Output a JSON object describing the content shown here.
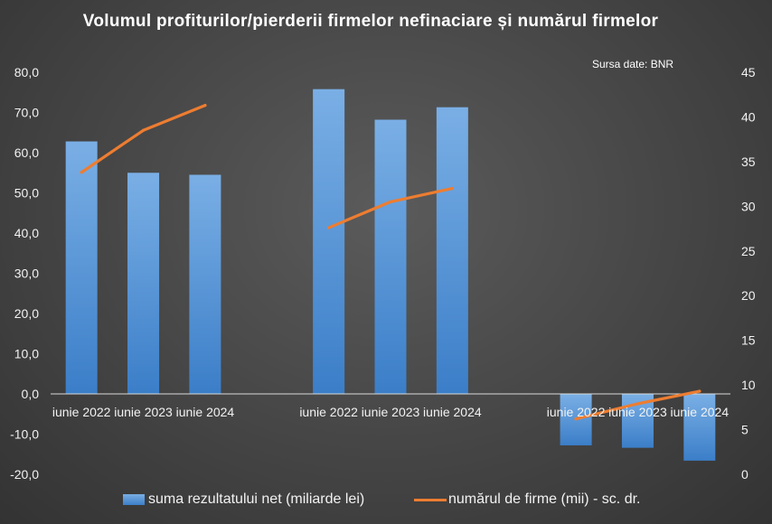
{
  "chart_data": {
    "type": "bar",
    "title": "Volumul profiturilor/pierderii firmelor nefinaciare și numărul firmelor",
    "source_note": "Sursa date: BNR",
    "categories": [
      "iunie 2022",
      "iunie 2023",
      "iunie 2024",
      "iunie 2022",
      "iunie 2023",
      "iunie 2024",
      "iunie 2022",
      "iunie 2023",
      "iunie 2024"
    ],
    "groups": [
      [
        0,
        1,
        2
      ],
      [
        3,
        4,
        5
      ],
      [
        6,
        7,
        8
      ]
    ],
    "series": [
      {
        "name": "suma rezultatului net (miliarde lei)",
        "type": "bar",
        "axis": "left",
        "color": "#5b9bd5",
        "values": [
          62.8,
          55.0,
          54.5,
          75.8,
          68.2,
          71.3,
          -12.8,
          -13.4,
          -16.6
        ]
      },
      {
        "name": "numărul de firme (mii) - sc. dr.",
        "type": "line",
        "axis": "right",
        "color": "#ed7d31",
        "values": [
          33.8,
          38.5,
          41.3,
          27.6,
          30.5,
          32.0,
          6.2,
          7.9,
          9.3
        ]
      }
    ],
    "y_left": {
      "ylim": [
        -20,
        80
      ],
      "ticks": [
        -20,
        -10,
        0,
        10,
        20,
        30,
        40,
        50,
        60,
        70,
        80
      ],
      "tick_labels": [
        "-20,0",
        "-10,0",
        "0,0",
        "10,0",
        "20,0",
        "30,0",
        "40,0",
        "50,0",
        "60,0",
        "70,0",
        "80,0"
      ]
    },
    "y_right": {
      "ylim": [
        0,
        45
      ],
      "ticks": [
        0,
        5,
        10,
        15,
        20,
        25,
        30,
        35,
        40,
        45
      ],
      "tick_labels": [
        "0",
        "5",
        "10",
        "15",
        "20",
        "25",
        "30",
        "35",
        "40",
        "45"
      ]
    },
    "grid": false,
    "legend_position": "bottom"
  }
}
